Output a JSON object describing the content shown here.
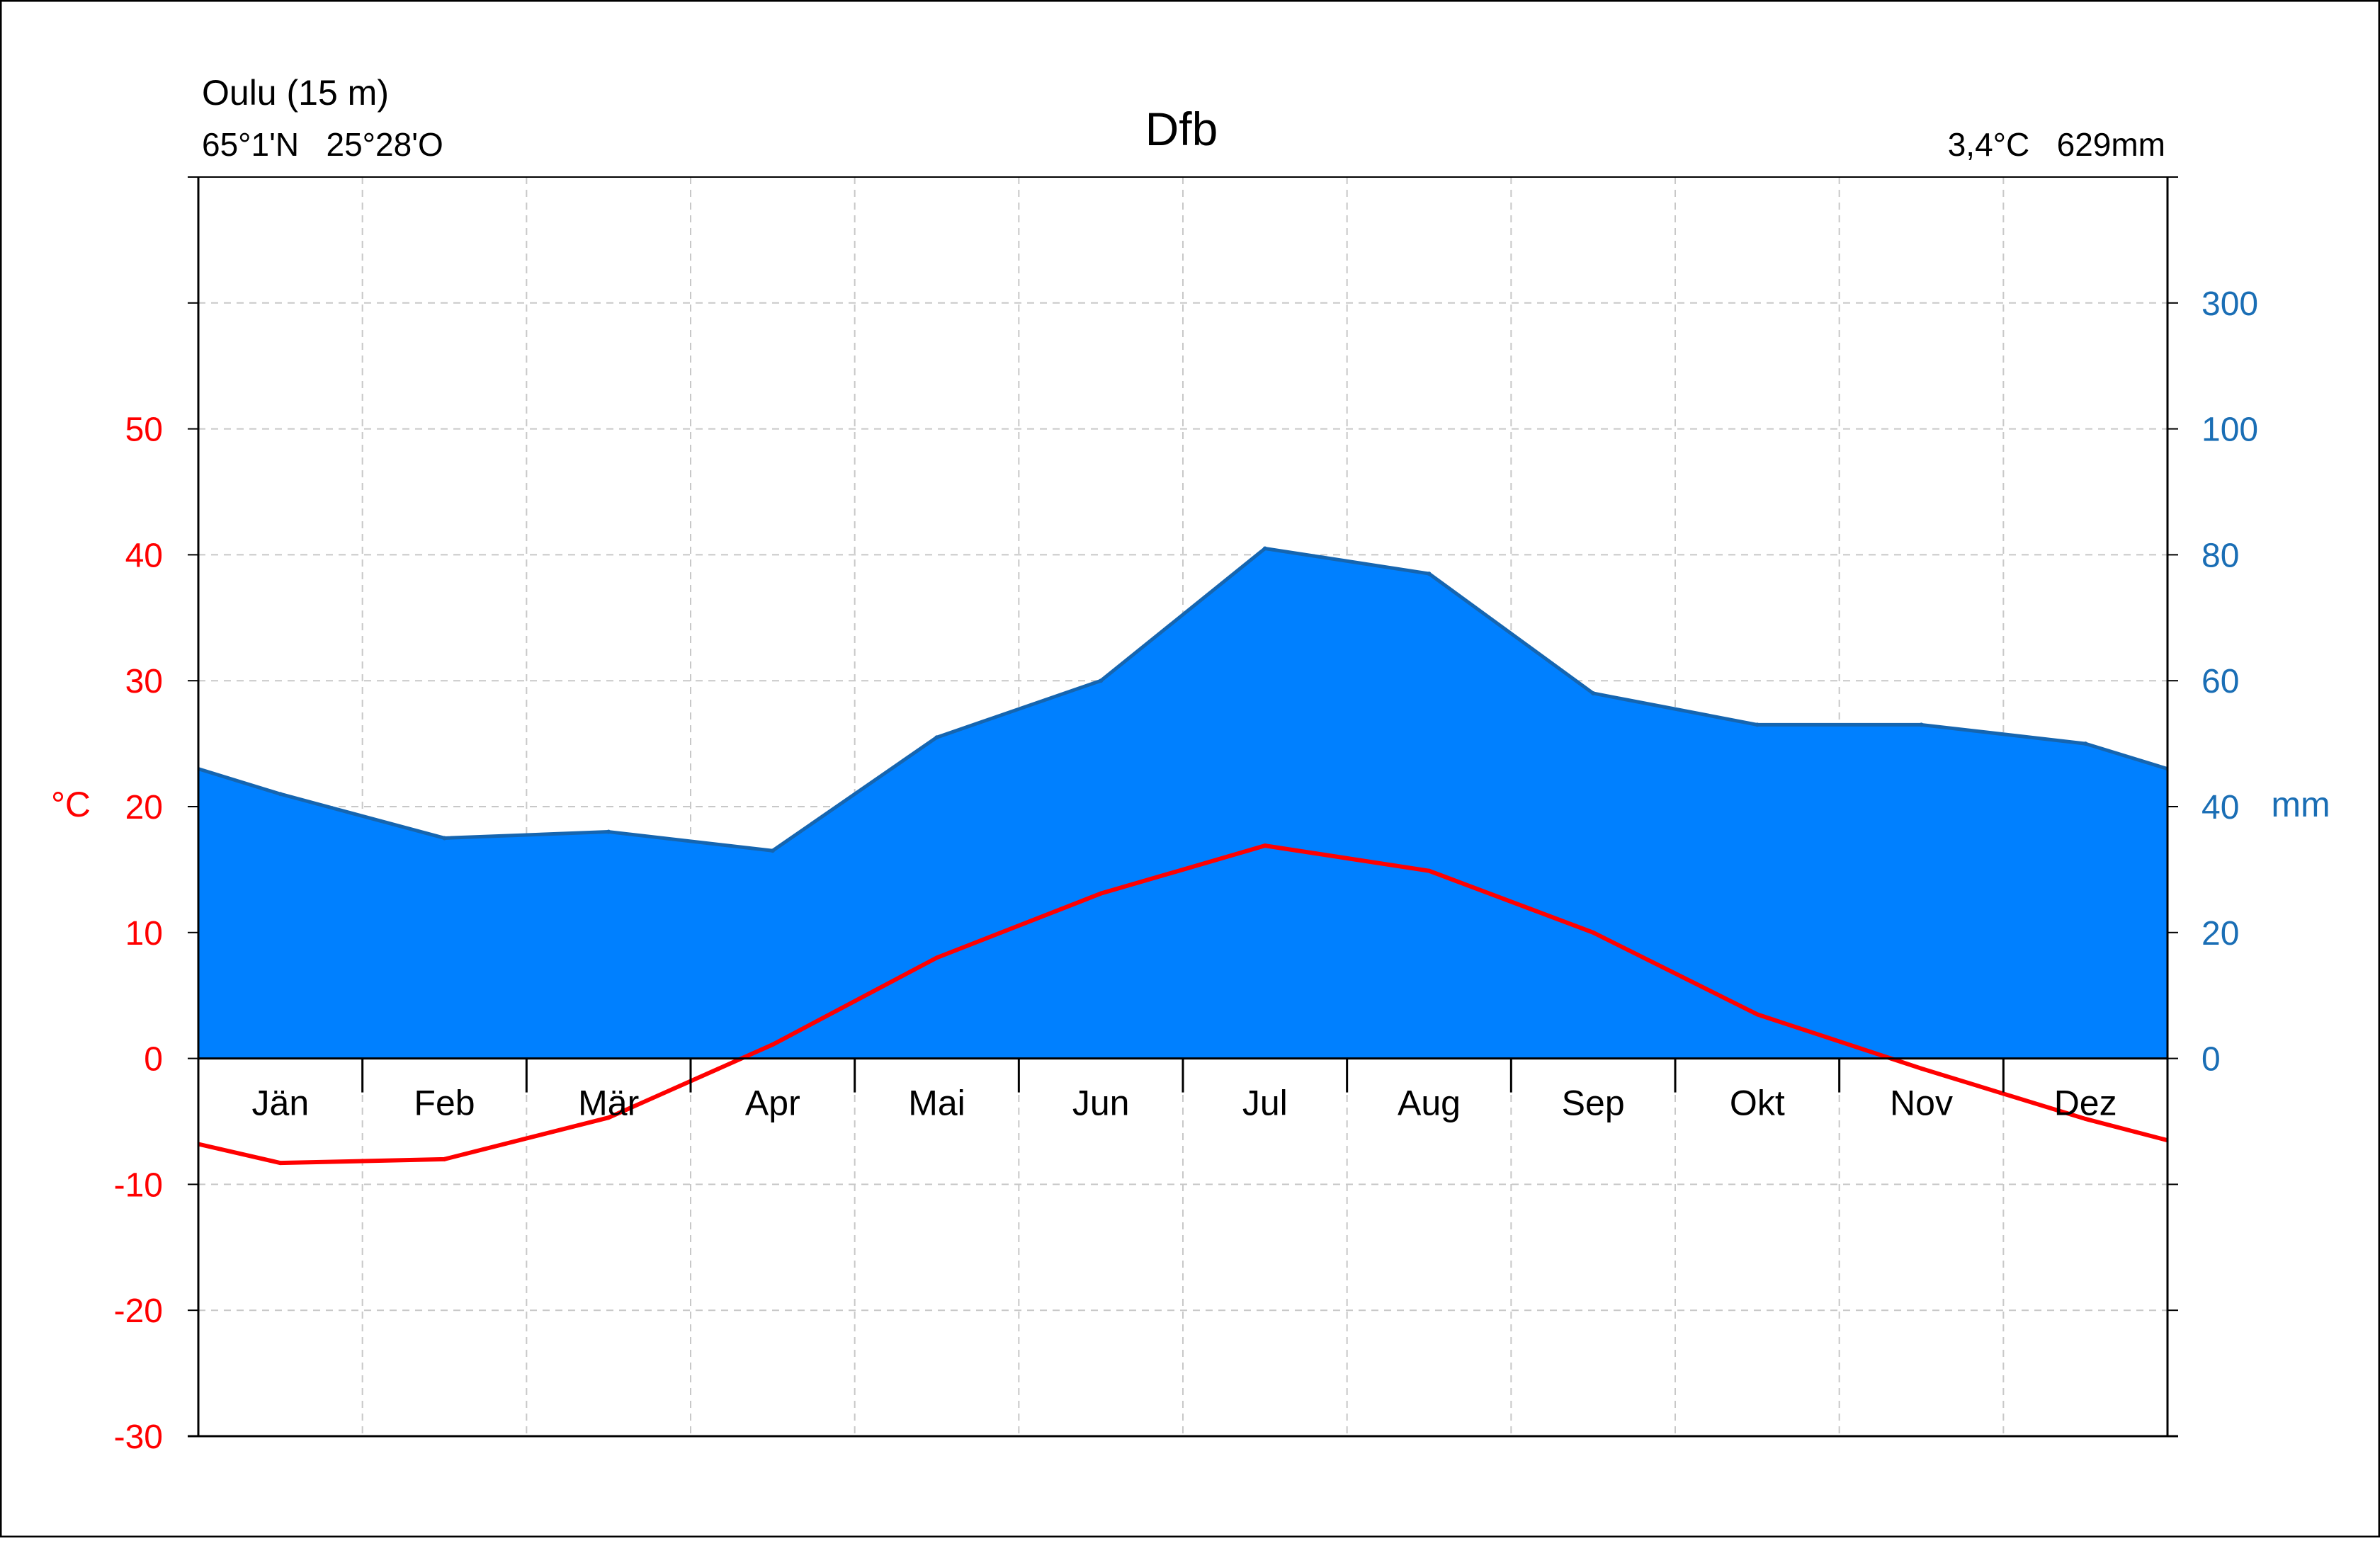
{
  "chart_data": {
    "type": "area",
    "title": "Dfb",
    "station": "Oulu (15 m)",
    "coordinates": "65°1'N   25°28'O",
    "summary": "3,4°C   629mm",
    "categories": [
      "Jän",
      "Feb",
      "Mär",
      "Apr",
      "Mai",
      "Jun",
      "Jul",
      "Aug",
      "Sep",
      "Okt",
      "Nov",
      "Dez"
    ],
    "series": [
      {
        "name": "",
        "values": [
          -8.3,
          -8.0,
          -4.7,
          1.1,
          8.0,
          13.1,
          16.9,
          14.9,
          10.0,
          3.5,
          -0.8,
          -4.8
        ]
      },
      {
        "name": "",
        "values": [
          42,
          35,
          36,
          33,
          51,
          60,
          81,
          77,
          58,
          53,
          53,
          50
        ]
      }
    ],
    "temperature_edges": [
      -6.8,
      -6.5
    ],
    "precipitation_edges": [
      46,
      46
    ],
    "ylabel": "°C",
    "ylabel_right": "mm",
    "ylim": [
      -30,
      70
    ],
    "ylim_right": [
      0,
      400
    ],
    "yticks": [
      "-30",
      "-20",
      "-10",
      "0",
      "10",
      "20",
      "30",
      "40",
      "50"
    ],
    "yticks_right": [
      "0",
      "20",
      "40",
      "60",
      "80",
      "100",
      "300"
    ],
    "grid": true,
    "colors": {
      "temperature": "#ff0000",
      "precipitation_fill": "#0080ff",
      "precipitation_line": "#1565b0",
      "right_axis_text": "#1a6eb5",
      "left_axis_text": "#ff0000",
      "grid": "#c8c8c8"
    }
  }
}
